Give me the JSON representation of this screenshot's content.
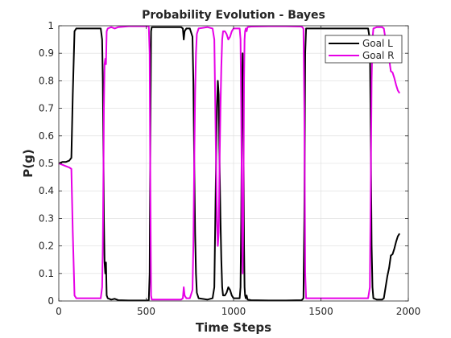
{
  "chart_data": {
    "type": "line",
    "title": "Probability Evolution - Bayes",
    "xlabel": "Time Steps",
    "ylabel": "P(g)",
    "xlim": [
      0,
      2000
    ],
    "ylim": [
      0,
      1
    ],
    "xticks": [
      0,
      500,
      1000,
      1500,
      2000
    ],
    "yticks": [
      0,
      0.1,
      0.2,
      0.3,
      0.4,
      0.5,
      0.6,
      0.7,
      0.8,
      0.9,
      1
    ],
    "grid": true,
    "legend_position": "top-right",
    "series": [
      {
        "name": "Goal L",
        "color": "#000000",
        "points": [
          [
            0,
            0.5
          ],
          [
            20,
            0.505
          ],
          [
            40,
            0.505
          ],
          [
            60,
            0.51
          ],
          [
            72,
            0.52
          ],
          [
            80,
            0.75
          ],
          [
            90,
            0.98
          ],
          [
            100,
            0.99
          ],
          [
            150,
            0.99
          ],
          [
            200,
            0.99
          ],
          [
            240,
            0.99
          ],
          [
            248,
            0.95
          ],
          [
            252,
            0.8
          ],
          [
            256,
            0.5
          ],
          [
            258,
            0.3
          ],
          [
            262,
            0.14
          ],
          [
            266,
            0.1
          ],
          [
            270,
            0.14
          ],
          [
            274,
            0.02
          ],
          [
            280,
            0.01
          ],
          [
            300,
            0.005
          ],
          [
            320,
            0.008
          ],
          [
            340,
            0.003
          ],
          [
            400,
            0.002
          ],
          [
            450,
            0.002
          ],
          [
            500,
            0.002
          ],
          [
            515,
            0.003
          ],
          [
            520,
            0.1
          ],
          [
            524,
            0.6
          ],
          [
            528,
            0.98
          ],
          [
            532,
            0.995
          ],
          [
            600,
            0.995
          ],
          [
            700,
            0.995
          ],
          [
            710,
            0.99
          ],
          [
            715,
            0.95
          ],
          [
            720,
            0.98
          ],
          [
            730,
            0.99
          ],
          [
            750,
            0.99
          ],
          [
            765,
            0.96
          ],
          [
            770,
            0.8
          ],
          [
            775,
            0.5
          ],
          [
            780,
            0.25
          ],
          [
            785,
            0.1
          ],
          [
            790,
            0.03
          ],
          [
            800,
            0.01
          ],
          [
            850,
            0.005
          ],
          [
            880,
            0.01
          ],
          [
            890,
            0.05
          ],
          [
            900,
            0.5
          ],
          [
            905,
            0.7
          ],
          [
            910,
            0.8
          ],
          [
            915,
            0.75
          ],
          [
            920,
            0.5
          ],
          [
            925,
            0.3
          ],
          [
            930,
            0.15
          ],
          [
            935,
            0.05
          ],
          [
            940,
            0.02
          ],
          [
            950,
            0.02
          ],
          [
            960,
            0.03
          ],
          [
            970,
            0.05
          ],
          [
            980,
            0.04
          ],
          [
            990,
            0.02
          ],
          [
            1000,
            0.01
          ],
          [
            1020,
            0.01
          ],
          [
            1035,
            0.01
          ],
          [
            1040,
            0.05
          ],
          [
            1044,
            0.3
          ],
          [
            1048,
            0.7
          ],
          [
            1052,
            0.9
          ],
          [
            1056,
            0.7
          ],
          [
            1060,
            0.2
          ],
          [
            1063,
            0.05
          ],
          [
            1066,
            0.02
          ],
          [
            1070,
            0.01
          ],
          [
            1075,
            0.02
          ],
          [
            1080,
            0.005
          ],
          [
            1100,
            0.003
          ],
          [
            1200,
            0.002
          ],
          [
            1300,
            0.002
          ],
          [
            1390,
            0.003
          ],
          [
            1400,
            0.01
          ],
          [
            1405,
            0.3
          ],
          [
            1410,
            0.9
          ],
          [
            1415,
            0.99
          ],
          [
            1450,
            0.99
          ],
          [
            1500,
            0.99
          ],
          [
            1600,
            0.99
          ],
          [
            1700,
            0.99
          ],
          [
            1770,
            0.99
          ],
          [
            1780,
            0.95
          ],
          [
            1785,
            0.6
          ],
          [
            1790,
            0.2
          ],
          [
            1795,
            0.05
          ],
          [
            1800,
            0.01
          ],
          [
            1820,
            0.005
          ],
          [
            1850,
            0.005
          ],
          [
            1860,
            0.01
          ],
          [
            1870,
            0.05
          ],
          [
            1880,
            0.09
          ],
          [
            1890,
            0.12
          ],
          [
            1900,
            0.165
          ],
          [
            1910,
            0.17
          ],
          [
            1920,
            0.19
          ],
          [
            1930,
            0.215
          ],
          [
            1940,
            0.235
          ],
          [
            1950,
            0.245
          ]
        ]
      },
      {
        "name": "Goal R",
        "color": "#e600e6",
        "points": [
          [
            0,
            0.5
          ],
          [
            20,
            0.495
          ],
          [
            40,
            0.49
          ],
          [
            60,
            0.485
          ],
          [
            72,
            0.48
          ],
          [
            80,
            0.25
          ],
          [
            90,
            0.02
          ],
          [
            100,
            0.01
          ],
          [
            150,
            0.01
          ],
          [
            200,
            0.01
          ],
          [
            240,
            0.01
          ],
          [
            248,
            0.05
          ],
          [
            252,
            0.2
          ],
          [
            256,
            0.5
          ],
          [
            258,
            0.7
          ],
          [
            262,
            0.86
          ],
          [
            266,
            0.88
          ],
          [
            270,
            0.86
          ],
          [
            274,
            0.98
          ],
          [
            280,
            0.99
          ],
          [
            300,
            0.995
          ],
          [
            320,
            0.99
          ],
          [
            340,
            0.995
          ],
          [
            400,
            0.998
          ],
          [
            450,
            0.998
          ],
          [
            500,
            0.998
          ],
          [
            515,
            0.997
          ],
          [
            520,
            0.9
          ],
          [
            524,
            0.4
          ],
          [
            528,
            0.02
          ],
          [
            532,
            0.005
          ],
          [
            600,
            0.005
          ],
          [
            700,
            0.005
          ],
          [
            710,
            0.01
          ],
          [
            715,
            0.05
          ],
          [
            720,
            0.02
          ],
          [
            730,
            0.01
          ],
          [
            750,
            0.01
          ],
          [
            765,
            0.04
          ],
          [
            770,
            0.2
          ],
          [
            775,
            0.5
          ],
          [
            780,
            0.75
          ],
          [
            785,
            0.9
          ],
          [
            790,
            0.97
          ],
          [
            800,
            0.99
          ],
          [
            850,
            0.995
          ],
          [
            880,
            0.99
          ],
          [
            890,
            0.95
          ],
          [
            900,
            0.5
          ],
          [
            905,
            0.3
          ],
          [
            910,
            0.2
          ],
          [
            915,
            0.25
          ],
          [
            920,
            0.5
          ],
          [
            925,
            0.7
          ],
          [
            930,
            0.85
          ],
          [
            935,
            0.95
          ],
          [
            940,
            0.98
          ],
          [
            950,
            0.98
          ],
          [
            960,
            0.97
          ],
          [
            970,
            0.95
          ],
          [
            980,
            0.96
          ],
          [
            990,
            0.98
          ],
          [
            1000,
            0.99
          ],
          [
            1020,
            0.99
          ],
          [
            1035,
            0.99
          ],
          [
            1040,
            0.95
          ],
          [
            1044,
            0.7
          ],
          [
            1048,
            0.3
          ],
          [
            1052,
            0.1
          ],
          [
            1056,
            0.3
          ],
          [
            1060,
            0.8
          ],
          [
            1063,
            0.95
          ],
          [
            1066,
            0.98
          ],
          [
            1070,
            0.99
          ],
          [
            1075,
            0.98
          ],
          [
            1080,
            0.995
          ],
          [
            1100,
            0.997
          ],
          [
            1200,
            0.998
          ],
          [
            1300,
            0.998
          ],
          [
            1390,
            0.997
          ],
          [
            1400,
            0.99
          ],
          [
            1405,
            0.7
          ],
          [
            1410,
            0.1
          ],
          [
            1415,
            0.01
          ],
          [
            1450,
            0.01
          ],
          [
            1500,
            0.01
          ],
          [
            1600,
            0.01
          ],
          [
            1700,
            0.01
          ],
          [
            1770,
            0.01
          ],
          [
            1780,
            0.05
          ],
          [
            1785,
            0.4
          ],
          [
            1790,
            0.8
          ],
          [
            1795,
            0.95
          ],
          [
            1800,
            0.99
          ],
          [
            1820,
            0.995
          ],
          [
            1850,
            0.995
          ],
          [
            1860,
            0.99
          ],
          [
            1870,
            0.95
          ],
          [
            1880,
            0.91
          ],
          [
            1890,
            0.88
          ],
          [
            1900,
            0.835
          ],
          [
            1910,
            0.83
          ],
          [
            1920,
            0.81
          ],
          [
            1930,
            0.785
          ],
          [
            1940,
            0.765
          ],
          [
            1950,
            0.755
          ]
        ]
      }
    ]
  }
}
